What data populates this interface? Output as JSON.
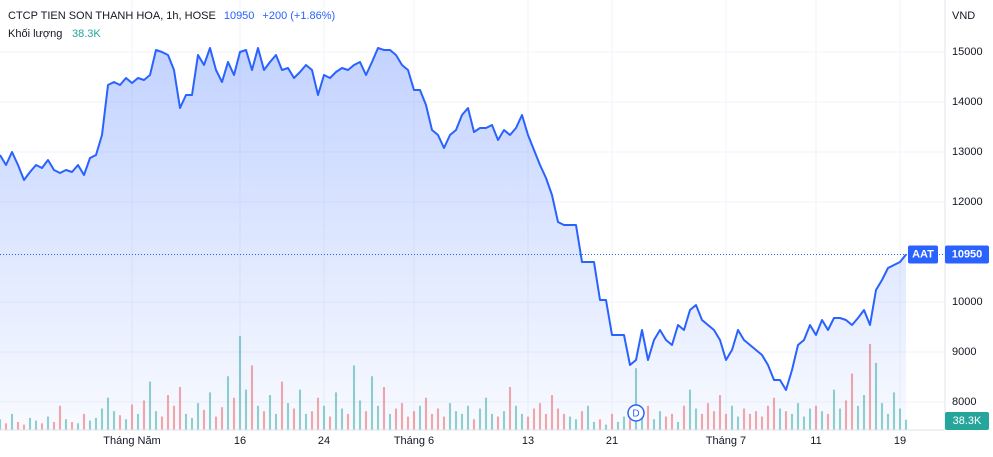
{
  "chart_data": {
    "type": "line",
    "title": "CTCP TIEN SON THANH HOA, 1h, HOSE",
    "last_price": "10950",
    "change": "+200 (+1.86%)",
    "volume_title": "Khối lượng",
    "volume_last": "38.3K",
    "currency": "VND",
    "symbol": "AAT",
    "annotations": [
      {
        "text": "D",
        "index": 106
      }
    ],
    "color": "#2962ff",
    "up_color": "#26a69a",
    "down_color": "#ef5350",
    "grid": true,
    "ylim": [
      7440,
      16040
    ],
    "yticks": [
      8000,
      9000,
      10000,
      12000,
      13000,
      14000,
      15000
    ],
    "volume_ylim": [
      0,
      1600000
    ],
    "xticks": [
      {
        "value": 22,
        "label": "Tháng Năm"
      },
      {
        "value": 40,
        "label": "16"
      },
      {
        "value": 54,
        "label": "24"
      },
      {
        "value": 69,
        "label": "Tháng 6"
      },
      {
        "value": 88,
        "label": "13"
      },
      {
        "value": 102,
        "label": "21"
      },
      {
        "value": 121,
        "label": "Tháng 7"
      },
      {
        "value": 136,
        "label": "11"
      },
      {
        "value": 150,
        "label": "19"
      }
    ],
    "series": [
      {
        "name": "AAT",
        "values": [
          12940,
          12740,
          13000,
          12740,
          12440,
          12600,
          12740,
          12680,
          12840,
          12640,
          12580,
          12640,
          12600,
          12740,
          12540,
          12880,
          12940,
          13340,
          14340,
          14400,
          14340,
          14480,
          14380,
          14480,
          14440,
          14540,
          15040,
          15000,
          14940,
          14640,
          13880,
          14140,
          14140,
          14940,
          14740,
          15080,
          14640,
          14400,
          14800,
          14540,
          15000,
          15040,
          14640,
          15080,
          14640,
          14800,
          14940,
          14640,
          14680,
          14480,
          14600,
          14740,
          14640,
          14140,
          14540,
          14480,
          14600,
          14680,
          14640,
          14740,
          14800,
          14540,
          14800,
          15080,
          15040,
          15040,
          14940,
          14740,
          14640,
          14240,
          14240,
          13940,
          13440,
          13340,
          13080,
          13340,
          13440,
          13740,
          13880,
          13400,
          13480,
          13480,
          13540,
          13240,
          13440,
          13340,
          13480,
          13740,
          13340,
          13040,
          12740,
          12480,
          12140,
          11600,
          11540,
          11540,
          11540,
          10800,
          10800,
          10800,
          10040,
          10040,
          9340,
          9340,
          9340,
          8740,
          8840,
          9440,
          8840,
          9240,
          9440,
          9240,
          9140,
          9540,
          9440,
          9840,
          9940,
          9640,
          9540,
          9440,
          9240,
          8840,
          9040,
          9440,
          9240,
          9140,
          9040,
          8940,
          8740,
          8440,
          8440,
          8240,
          8640,
          9140,
          9240,
          9540,
          9340,
          9640,
          9440,
          9680,
          9680,
          9640,
          9540,
          9680,
          9840,
          9540,
          10240,
          10440,
          10680,
          10740,
          10800,
          10950
        ]
      },
      {
        "name": "Khối lượng",
        "values": [
          40000,
          25000,
          60000,
          30000,
          20000,
          45000,
          35000,
          25000,
          50000,
          30000,
          90000,
          40000,
          30000,
          25000,
          60000,
          35000,
          45000,
          80000,
          120000,
          70000,
          55000,
          40000,
          95000,
          60000,
          110000,
          180000,
          70000,
          50000,
          130000,
          90000,
          160000,
          60000,
          45000,
          100000,
          75000,
          140000,
          50000,
          85000,
          200000,
          120000,
          350000,
          150000,
          240000,
          90000,
          70000,
          130000,
          60000,
          180000,
          100000,
          80000,
          150000,
          60000,
          70000,
          120000,
          90000,
          50000,
          140000,
          80000,
          60000,
          240000,
          110000,
          70000,
          200000,
          90000,
          160000,
          60000,
          80000,
          100000,
          50000,
          70000,
          90000,
          120000,
          60000,
          80000,
          50000,
          100000,
          70000,
          60000,
          90000,
          40000,
          80000,
          120000,
          60000,
          50000,
          70000,
          160000,
          90000,
          60000,
          50000,
          80000,
          100000,
          60000,
          130000,
          80000,
          60000,
          50000,
          40000,
          70000,
          90000,
          30000,
          40000,
          20000,
          60000,
          30000,
          50000,
          40000,
          230000,
          50000,
          90000,
          40000,
          70000,
          50000,
          60000,
          30000,
          90000,
          150000,
          80000,
          60000,
          100000,
          70000,
          130000,
          60000,
          90000,
          50000,
          80000,
          60000,
          70000,
          50000,
          90000,
          120000,
          80000,
          70000,
          60000,
          100000,
          50000,
          80000,
          90000,
          70000,
          60000,
          150000,
          80000,
          110000,
          210000,
          90000,
          130000,
          320000,
          250000,
          100000,
          60000,
          140000,
          80000,
          38300
        ]
      }
    ]
  }
}
